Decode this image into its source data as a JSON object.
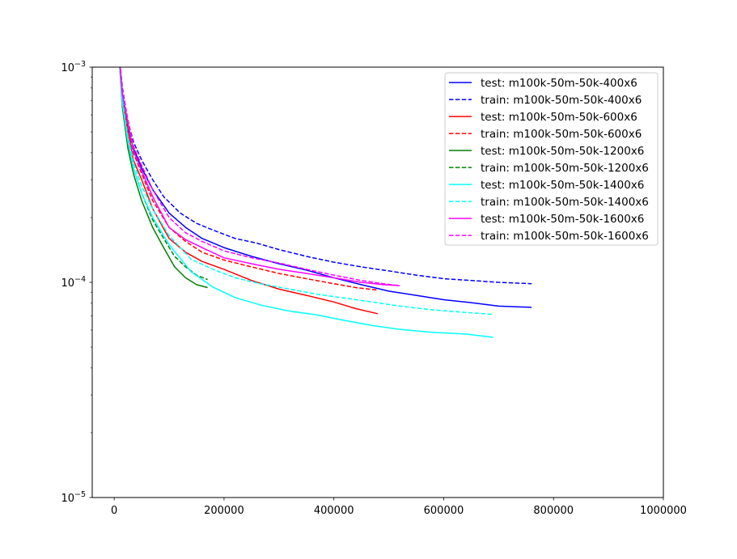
{
  "chart_data": {
    "type": "line",
    "title": "",
    "xlabel": "",
    "ylabel": "",
    "xlim": [
      -40000,
      1000000
    ],
    "ylim": [
      1e-05,
      0.001
    ],
    "yscale": "log",
    "grid": false,
    "legend_position": "top-right",
    "x_ticks": [
      {
        "value": 0,
        "label": "0"
      },
      {
        "value": 200000,
        "label": "200000"
      },
      {
        "value": 400000,
        "label": "400000"
      },
      {
        "value": 600000,
        "label": "600000"
      },
      {
        "value": 800000,
        "label": "800000"
      },
      {
        "value": 1000000,
        "label": "1000000"
      }
    ],
    "y_ticks": [
      {
        "value": 1e-05,
        "base": "10",
        "exp": "−5"
      },
      {
        "value": 0.0001,
        "base": "10",
        "exp": "−4"
      },
      {
        "value": 0.001,
        "base": "10",
        "exp": "−3"
      }
    ],
    "series": [
      {
        "name": "test: m100k-50m-50k-400x6",
        "color": "#0000ff",
        "dash": "solid",
        "points": [
          [
            8000,
            0.0012
          ],
          [
            15000,
            0.00075
          ],
          [
            25000,
            0.00052
          ],
          [
            35000,
            0.00042
          ],
          [
            50000,
            0.00034
          ],
          [
            70000,
            0.00027
          ],
          [
            100000,
            0.00021
          ],
          [
            130000,
            0.00018
          ],
          [
            160000,
            0.00016
          ],
          [
            200000,
            0.000145
          ],
          [
            250000,
            0.000132
          ],
          [
            300000,
            0.000122
          ],
          [
            350000,
            0.000114
          ],
          [
            400000,
            0.000105
          ],
          [
            450000,
            9.75e-05
          ],
          [
            500000,
            9.1e-05
          ],
          [
            550000,
            8.7e-05
          ],
          [
            600000,
            8.3e-05
          ],
          [
            650000,
            8.05e-05
          ],
          [
            700000,
            7.75e-05
          ],
          [
            760000,
            7.65e-05
          ]
        ]
      },
      {
        "name": "train: m100k-50m-50k-400x6",
        "color": "#0000ff",
        "dash": "dashed",
        "points": [
          [
            8000,
            0.0012
          ],
          [
            15000,
            0.0008
          ],
          [
            25000,
            0.00056
          ],
          [
            35000,
            0.00045
          ],
          [
            50000,
            0.00037
          ],
          [
            70000,
            0.0003
          ],
          [
            90000,
            0.00025
          ],
          [
            120000,
            0.00021
          ],
          [
            150000,
            0.000188
          ],
          [
            180000,
            0.000175
          ],
          [
            220000,
            0.00016
          ],
          [
            260000,
            0.000152
          ],
          [
            300000,
            0.000142
          ],
          [
            350000,
            0.000132
          ],
          [
            400000,
            0.000124
          ],
          [
            450000,
            0.000118
          ],
          [
            500000,
            0.000113
          ],
          [
            550000,
            0.000108
          ],
          [
            600000,
            0.000104
          ],
          [
            650000,
            0.000102
          ],
          [
            700000,
            0.0001
          ],
          [
            760000,
            9.85e-05
          ]
        ]
      },
      {
        "name": "test: m100k-50m-50k-600x6",
        "color": "#ff0000",
        "dash": "solid",
        "points": [
          [
            8000,
            0.0012
          ],
          [
            15000,
            0.00072
          ],
          [
            25000,
            0.0005
          ],
          [
            35000,
            0.00037
          ],
          [
            50000,
            0.0003
          ],
          [
            70000,
            0.00022
          ],
          [
            100000,
            0.00016
          ],
          [
            130000,
            0.000138
          ],
          [
            160000,
            0.000125
          ],
          [
            200000,
            0.000115
          ],
          [
            250000,
            0.000102
          ],
          [
            300000,
            9.3e-05
          ],
          [
            350000,
            8.7e-05
          ],
          [
            400000,
            8.1e-05
          ],
          [
            440000,
            7.55e-05
          ],
          [
            480000,
            7.15e-05
          ]
        ]
      },
      {
        "name": "train: m100k-50m-50k-600x6",
        "color": "#ff0000",
        "dash": "dashed",
        "points": [
          [
            8000,
            0.0012
          ],
          [
            15000,
            0.00075
          ],
          [
            25000,
            0.00052
          ],
          [
            35000,
            0.0004
          ],
          [
            50000,
            0.00032
          ],
          [
            70000,
            0.00024
          ],
          [
            100000,
            0.00018
          ],
          [
            130000,
            0.000155
          ],
          [
            160000,
            0.000138
          ],
          [
            200000,
            0.000127
          ],
          [
            250000,
            0.000118
          ],
          [
            300000,
            0.00011
          ],
          [
            350000,
            0.000104
          ],
          [
            400000,
            9.85e-05
          ],
          [
            440000,
            9.45e-05
          ],
          [
            480000,
            9.2e-05
          ]
        ]
      },
      {
        "name": "test: m100k-50m-50k-1200x6",
        "color": "#008000",
        "dash": "solid",
        "points": [
          [
            8000,
            0.0012
          ],
          [
            15000,
            0.00065
          ],
          [
            25000,
            0.00042
          ],
          [
            35000,
            0.00032
          ],
          [
            50000,
            0.00024
          ],
          [
            70000,
            0.00018
          ],
          [
            90000,
            0.000145
          ],
          [
            110000,
            0.000118
          ],
          [
            130000,
            0.000105
          ],
          [
            150000,
            9.75e-05
          ],
          [
            170000,
            9.45e-05
          ]
        ]
      },
      {
        "name": "train: m100k-50m-50k-1200x6",
        "color": "#008000",
        "dash": "dashed",
        "points": [
          [
            8000,
            0.0012
          ],
          [
            15000,
            0.0007
          ],
          [
            25000,
            0.00045
          ],
          [
            35000,
            0.00034
          ],
          [
            50000,
            0.00026
          ],
          [
            70000,
            0.000195
          ],
          [
            90000,
            0.00016
          ],
          [
            110000,
            0.000132
          ],
          [
            130000,
            0.000118
          ],
          [
            150000,
            0.000108
          ],
          [
            170000,
            0.000103
          ]
        ]
      },
      {
        "name": "test: m100k-50m-50k-1400x6",
        "color": "#00ffff",
        "dash": "solid",
        "points": [
          [
            8000,
            0.0012
          ],
          [
            15000,
            0.00068
          ],
          [
            25000,
            0.00045
          ],
          [
            35000,
            0.00034
          ],
          [
            50000,
            0.00026
          ],
          [
            70000,
            0.0002
          ],
          [
            100000,
            0.00015
          ],
          [
            140000,
            0.000112
          ],
          [
            180000,
            9.5e-05
          ],
          [
            220000,
            8.5e-05
          ],
          [
            270000,
            7.8e-05
          ],
          [
            320000,
            7.35e-05
          ],
          [
            370000,
            7.05e-05
          ],
          [
            420000,
            6.65e-05
          ],
          [
            470000,
            6.3e-05
          ],
          [
            520000,
            6.05e-05
          ],
          [
            580000,
            5.85e-05
          ],
          [
            640000,
            5.75e-05
          ],
          [
            690000,
            5.55e-05
          ]
        ]
      },
      {
        "name": "train: m100k-50m-50k-1400x6",
        "color": "#00ffff",
        "dash": "dashed",
        "points": [
          [
            8000,
            0.0012
          ],
          [
            15000,
            0.0007
          ],
          [
            25000,
            0.00048
          ],
          [
            35000,
            0.00036
          ],
          [
            50000,
            0.00028
          ],
          [
            70000,
            0.00022
          ],
          [
            100000,
            0.000165
          ],
          [
            140000,
            0.000128
          ],
          [
            180000,
            0.000115
          ],
          [
            220000,
            0.000105
          ],
          [
            270000,
            9.8e-05
          ],
          [
            320000,
            9.3e-05
          ],
          [
            370000,
            8.8e-05
          ],
          [
            420000,
            8.45e-05
          ],
          [
            470000,
            8.1e-05
          ],
          [
            520000,
            7.75e-05
          ],
          [
            580000,
            7.45e-05
          ],
          [
            640000,
            7.25e-05
          ],
          [
            690000,
            7.1e-05
          ]
        ]
      },
      {
        "name": "test: m100k-50m-50k-1600x6",
        "color": "#ff00ff",
        "dash": "solid",
        "points": [
          [
            8000,
            0.0012
          ],
          [
            15000,
            0.00075
          ],
          [
            25000,
            0.00055
          ],
          [
            35000,
            0.00041
          ],
          [
            50000,
            0.00033
          ],
          [
            70000,
            0.00025
          ],
          [
            100000,
            0.00018
          ],
          [
            130000,
            0.000158
          ],
          [
            160000,
            0.000145
          ],
          [
            200000,
            0.00013
          ],
          [
            250000,
            0.000122
          ],
          [
            300000,
            0.000115
          ],
          [
            350000,
            0.00011
          ],
          [
            400000,
            0.000105
          ],
          [
            450000,
            0.0001
          ],
          [
            490000,
            9.75e-05
          ],
          [
            520000,
            9.65e-05
          ]
        ]
      },
      {
        "name": "train: m100k-50m-50k-1600x6",
        "color": "#ff00ff",
        "dash": "dashed",
        "points": [
          [
            8000,
            0.0012
          ],
          [
            15000,
            0.00078
          ],
          [
            25000,
            0.00057
          ],
          [
            35000,
            0.00043
          ],
          [
            50000,
            0.00035
          ],
          [
            70000,
            0.00027
          ],
          [
            100000,
            0.0002
          ],
          [
            130000,
            0.00017
          ],
          [
            160000,
            0.000155
          ],
          [
            200000,
            0.00014
          ],
          [
            250000,
            0.00013
          ],
          [
            300000,
            0.000123
          ],
          [
            350000,
            0.000115
          ],
          [
            400000,
            0.000108
          ],
          [
            450000,
            0.000102
          ],
          [
            490000,
            9.85e-05
          ],
          [
            520000,
            9.65e-05
          ]
        ]
      }
    ]
  }
}
